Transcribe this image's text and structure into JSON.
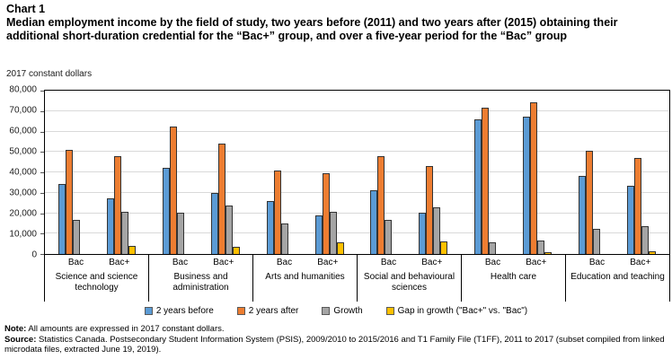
{
  "header": {
    "chart_label": "Chart 1",
    "title": "Median employment income by the field of study, two years before (2011) and two years after (2015) obtaining their additional short-duration credential for the “Bac+” group, and over a five-year period for the “Bac” group",
    "units": "2017 constant dollars"
  },
  "chart_data": {
    "type": "bar",
    "title": "Median employment income by the field of study, two years before (2011) and two years after (2015) obtaining their additional short-duration credential for the “Bac+” group, and over a five-year period for the “Bac” group",
    "ylabel": "2017 constant dollars",
    "xlabel": "",
    "ylim": [
      0,
      80000
    ],
    "ytick_interval": 10000,
    "ytick_labels": [
      "0",
      "10,000",
      "20,000",
      "30,000",
      "40,000",
      "50,000",
      "60,000",
      "70,000",
      "80,000"
    ],
    "grid": true,
    "legend_position": "bottom",
    "series": [
      {
        "name": "2 years before",
        "color": "#5B9BD5"
      },
      {
        "name": "2 years after",
        "color": "#ED7D31"
      },
      {
        "name": "Growth",
        "color": "#A5A5A5"
      },
      {
        "name": "Gap in growth (\"Bac+\" vs. \"Bac\")",
        "color": "#FFC000"
      }
    ],
    "groups": [
      {
        "label": "Science and science technology",
        "subgroups": [
          {
            "label": "Bac",
            "values": [
              34400,
              51000,
              16600,
              null
            ]
          },
          {
            "label": "Bac+",
            "values": [
              27200,
              47700,
              20500,
              3900
            ]
          }
        ]
      },
      {
        "label": "Business and administration",
        "subgroups": [
          {
            "label": "Bac",
            "values": [
              42000,
              62300,
              20300,
              null
            ]
          },
          {
            "label": "Bac+",
            "values": [
              30000,
              53900,
              23700,
              3400
            ]
          }
        ]
      },
      {
        "label": "Arts and humanities",
        "subgroups": [
          {
            "label": "Bac",
            "values": [
              26000,
              41000,
              15000,
              null
            ]
          },
          {
            "label": "Bac+",
            "values": [
              19000,
              39700,
              20700,
              5700
            ]
          }
        ]
      },
      {
        "label": "Social and behavioural sciences",
        "subgroups": [
          {
            "label": "Bac",
            "values": [
              31000,
              47800,
              16800,
              null
            ]
          },
          {
            "label": "Bac+",
            "values": [
              20300,
              43300,
              23000,
              6200
            ]
          }
        ]
      },
      {
        "label": "Health care",
        "subgroups": [
          {
            "label": "Bac",
            "values": [
              65900,
              71700,
              5800,
              null
            ]
          },
          {
            "label": "Bac+",
            "values": [
              67400,
              74200,
              6800,
              1000
            ]
          }
        ]
      },
      {
        "label": "Education and teaching",
        "subgroups": [
          {
            "label": "Bac",
            "values": [
              38300,
              50600,
              12300,
              null
            ]
          },
          {
            "label": "Bac+",
            "values": [
              33600,
              47200,
              13600,
              1300
            ]
          }
        ]
      }
    ]
  },
  "notes": {
    "note_label": "Note:",
    "note_text": "All amounts are expressed in 2017 constant dollars.",
    "source_label": "Source:",
    "source_text": "Statistics Canada. Postsecondary Student Information System (PSIS), 2009/2010 to 2015/2016 and T1 Family File (T1FF), 2011 to 2017 (subset compiled from linked microdata files, extracted June 19, 2019)."
  }
}
